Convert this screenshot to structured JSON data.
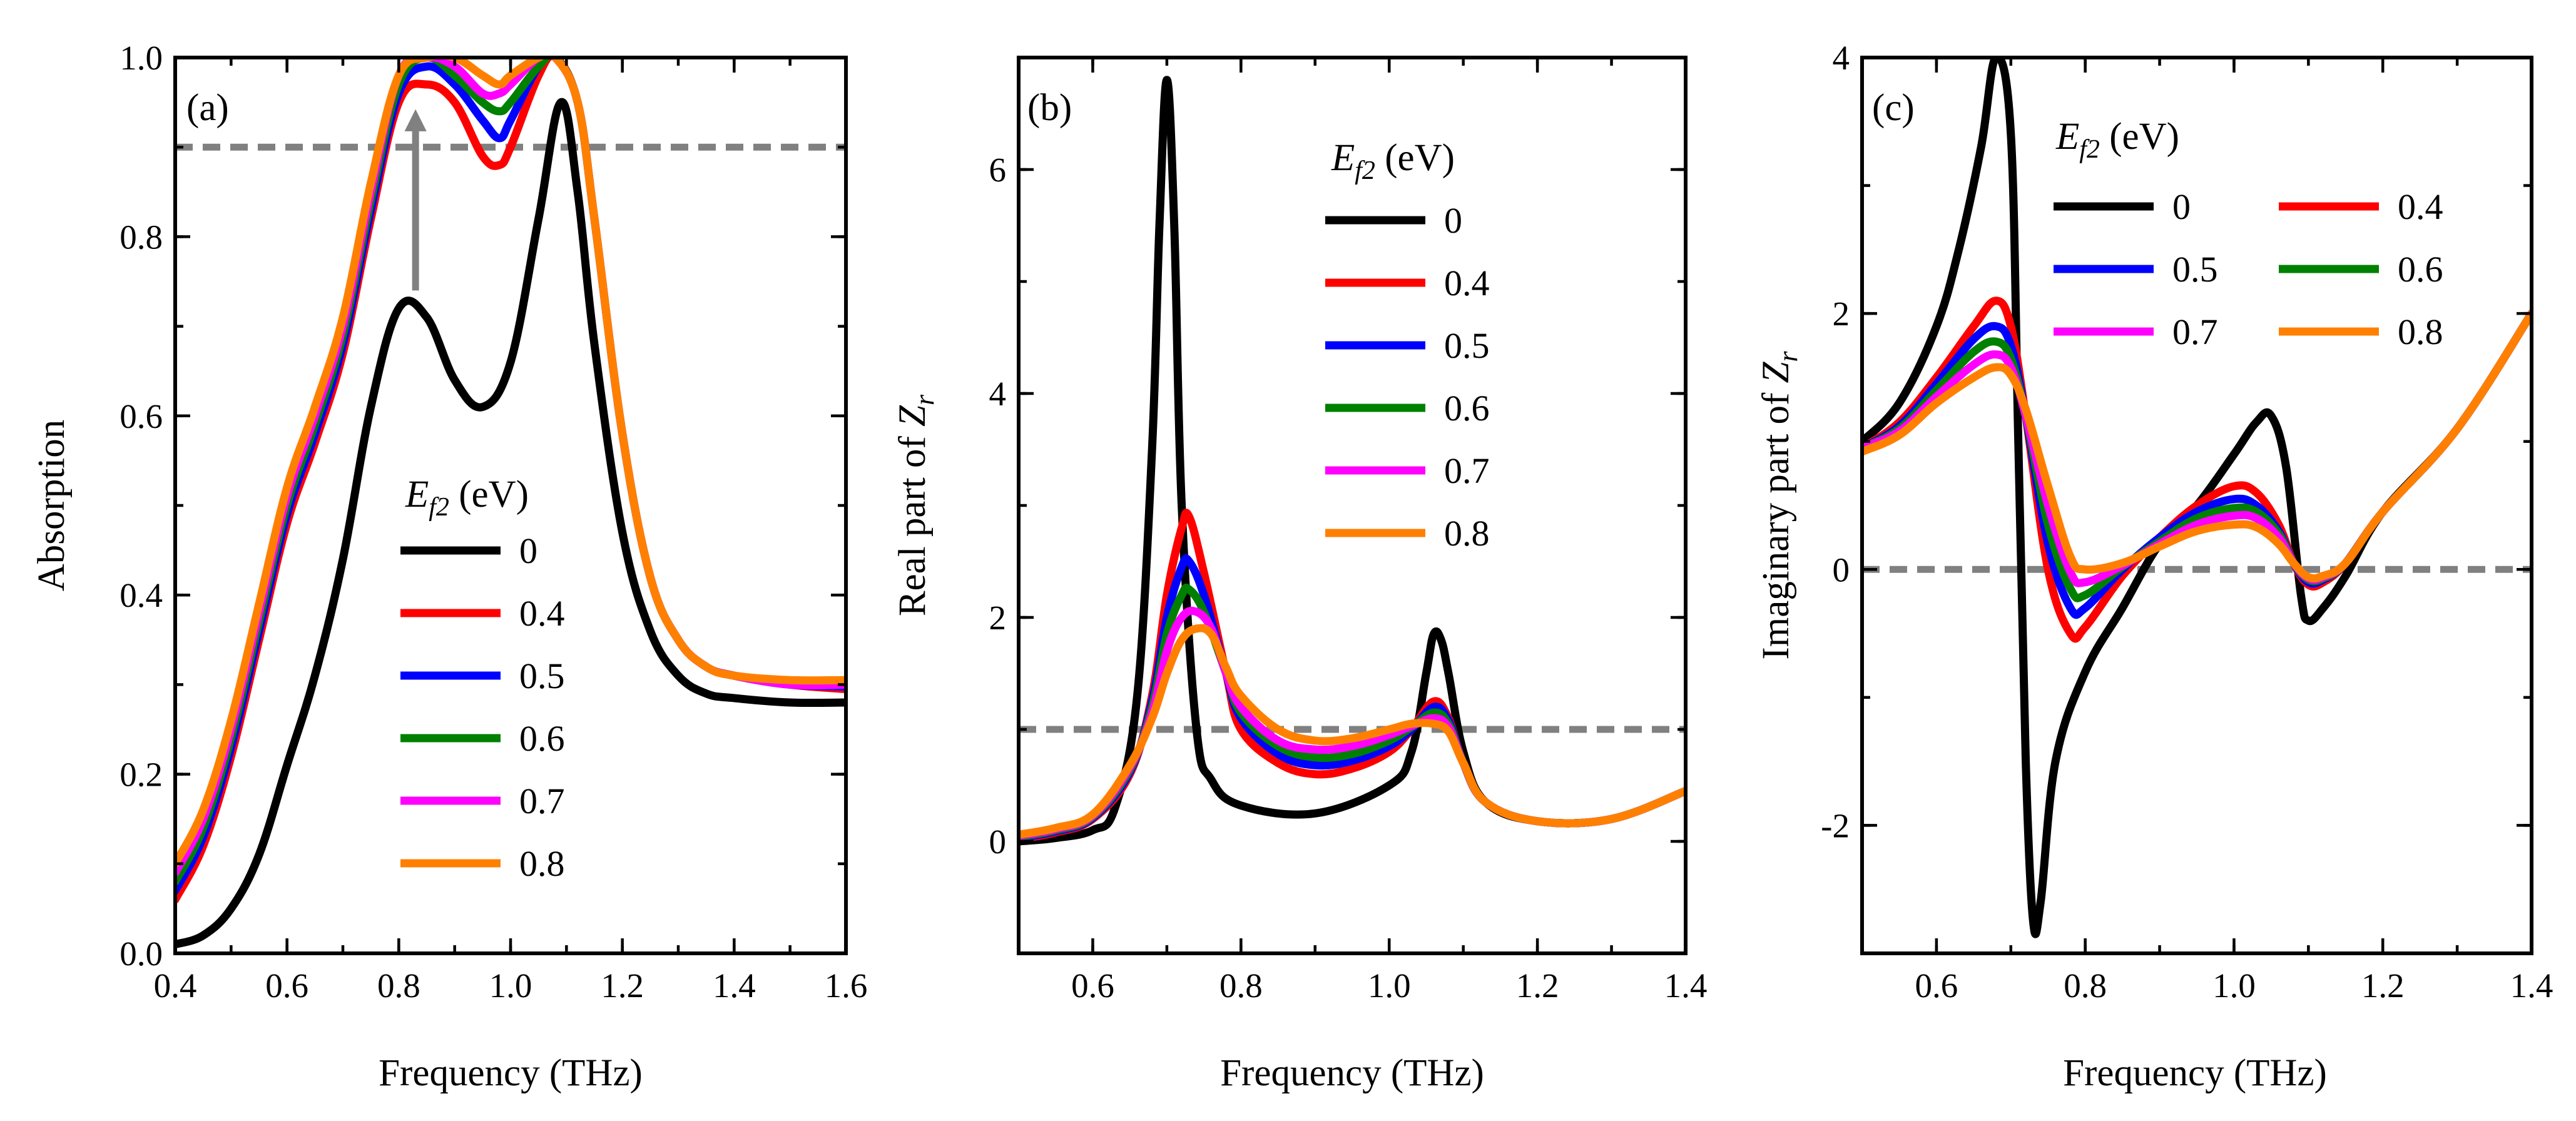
{
  "colors": {
    "0": "#000000",
    "0.4": "#ff0000",
    "0.5": "#0000ff",
    "0.6": "#008000",
    "0.7": "#ff00ff",
    "0.8": "#ff8000",
    "reference": "#808080",
    "arrow": "#808080"
  },
  "chart_data": [
    {
      "type": "line",
      "panel_label": "(a)",
      "xlabel": "Frequency (THz)",
      "ylabel": "Absorption",
      "xlim": [
        0.4,
        1.6
      ],
      "ylim": [
        0.0,
        1.0
      ],
      "xticks": [
        "0.4",
        "0.6",
        "0.8",
        "1.0",
        "1.2",
        "1.4",
        "1.6"
      ],
      "yticks": [
        "0.0",
        "0.2",
        "0.4",
        "0.6",
        "0.8",
        "1.0"
      ],
      "legend_title": {
        "symbol": "E",
        "subscript": "f2",
        "unit": " (eV)"
      },
      "legend_position": "lower-center",
      "reference_line": {
        "y": 0.9,
        "style": "dashed"
      },
      "annotation": {
        "type": "arrow",
        "direction": "up",
        "x": 0.83,
        "y_from": 0.74,
        "y_to": 0.93
      },
      "series": [
        {
          "name": "0",
          "x": [
            0.4,
            0.45,
            0.5,
            0.55,
            0.6,
            0.65,
            0.7,
            0.75,
            0.8,
            0.85,
            0.9,
            0.95,
            1.0,
            1.05,
            1.09,
            1.12,
            1.15,
            1.2,
            1.25,
            1.3,
            1.35,
            1.4,
            1.5,
            1.6
          ],
          "y": [
            0.01,
            0.02,
            0.05,
            0.11,
            0.21,
            0.31,
            0.44,
            0.61,
            0.72,
            0.71,
            0.64,
            0.61,
            0.66,
            0.82,
            0.95,
            0.85,
            0.68,
            0.47,
            0.36,
            0.31,
            0.29,
            0.285,
            0.28,
            0.28
          ]
        },
        {
          "name": "0.4",
          "x": [
            0.4,
            0.45,
            0.5,
            0.55,
            0.6,
            0.65,
            0.7,
            0.75,
            0.8,
            0.85,
            0.9,
            0.95,
            0.98,
            1.0,
            1.05,
            1.08,
            1.12,
            1.15,
            1.2,
            1.25,
            1.3,
            1.35,
            1.4,
            1.5,
            1.6
          ],
          "y": [
            0.06,
            0.12,
            0.22,
            0.35,
            0.48,
            0.57,
            0.67,
            0.82,
            0.95,
            0.97,
            0.95,
            0.89,
            0.88,
            0.9,
            0.98,
            1.0,
            0.95,
            0.82,
            0.58,
            0.42,
            0.35,
            0.32,
            0.31,
            0.3,
            0.295
          ]
        },
        {
          "name": "0.5",
          "x": [
            0.4,
            0.45,
            0.5,
            0.55,
            0.6,
            0.65,
            0.7,
            0.75,
            0.8,
            0.85,
            0.9,
            0.95,
            0.98,
            1.0,
            1.05,
            1.08,
            1.12,
            1.15,
            1.2,
            1.25,
            1.3,
            1.35,
            1.4,
            1.5,
            1.6
          ],
          "y": [
            0.07,
            0.13,
            0.23,
            0.36,
            0.49,
            0.58,
            0.68,
            0.83,
            0.96,
            0.99,
            0.97,
            0.93,
            0.91,
            0.93,
            0.99,
            1.0,
            0.95,
            0.82,
            0.58,
            0.42,
            0.35,
            0.32,
            0.31,
            0.3,
            0.298
          ]
        },
        {
          "name": "0.6",
          "x": [
            0.4,
            0.45,
            0.5,
            0.55,
            0.6,
            0.65,
            0.7,
            0.75,
            0.8,
            0.85,
            0.9,
            0.95,
            0.98,
            1.0,
            1.05,
            1.08,
            1.12,
            1.15,
            1.2,
            1.25,
            1.3,
            1.35,
            1.4,
            1.5,
            1.6
          ],
          "y": [
            0.08,
            0.14,
            0.24,
            0.37,
            0.5,
            0.59,
            0.69,
            0.84,
            0.97,
            1.0,
            0.98,
            0.95,
            0.94,
            0.95,
            0.99,
            1.0,
            0.95,
            0.82,
            0.58,
            0.42,
            0.35,
            0.32,
            0.31,
            0.3,
            0.3
          ]
        },
        {
          "name": "0.7",
          "x": [
            0.4,
            0.45,
            0.5,
            0.55,
            0.6,
            0.65,
            0.7,
            0.75,
            0.8,
            0.85,
            0.9,
            0.95,
            0.98,
            1.0,
            1.05,
            1.08,
            1.12,
            1.15,
            1.2,
            1.25,
            1.3,
            1.35,
            1.4,
            1.5,
            1.6
          ],
          "y": [
            0.09,
            0.15,
            0.25,
            0.38,
            0.51,
            0.6,
            0.7,
            0.85,
            0.98,
            1.0,
            0.99,
            0.96,
            0.96,
            0.97,
            1.0,
            1.0,
            0.95,
            0.82,
            0.58,
            0.42,
            0.35,
            0.32,
            0.31,
            0.3,
            0.3
          ]
        },
        {
          "name": "0.8",
          "x": [
            0.4,
            0.45,
            0.5,
            0.55,
            0.6,
            0.65,
            0.7,
            0.75,
            0.8,
            0.85,
            0.9,
            0.95,
            0.98,
            1.0,
            1.05,
            1.08,
            1.12,
            1.15,
            1.2,
            1.25,
            1.3,
            1.35,
            1.4,
            1.5,
            1.6
          ],
          "y": [
            0.1,
            0.16,
            0.26,
            0.39,
            0.52,
            0.61,
            0.71,
            0.86,
            0.98,
            1.0,
            1.0,
            0.98,
            0.97,
            0.98,
            1.0,
            1.0,
            0.95,
            0.82,
            0.58,
            0.42,
            0.35,
            0.32,
            0.31,
            0.305,
            0.305
          ]
        }
      ]
    },
    {
      "type": "line",
      "panel_label": "(b)",
      "xlabel": "Frequency (THz)",
      "ylabel": {
        "prefix": "Real part of ",
        "symbol": "Z",
        "subscript": "r"
      },
      "xlim": [
        0.5,
        1.4
      ],
      "ylim": [
        -1.0,
        7.0
      ],
      "xticks": [
        "0.6",
        "0.8",
        "1.0",
        "1.2",
        "1.4"
      ],
      "yticks": [
        "0",
        "2",
        "4",
        "6"
      ],
      "legend_title": {
        "symbol": "E",
        "subscript": "f2",
        "unit": " (eV)"
      },
      "legend_position": "upper-right",
      "reference_line": {
        "y": 1.0,
        "style": "dashed"
      },
      "series": [
        {
          "name": "0",
          "x": [
            0.5,
            0.55,
            0.6,
            0.63,
            0.66,
            0.68,
            0.69,
            0.7,
            0.71,
            0.72,
            0.74,
            0.76,
            0.8,
            0.9,
            1.0,
            1.03,
            1.05,
            1.06,
            1.07,
            1.08,
            1.1,
            1.13,
            1.2,
            1.3,
            1.4
          ],
          "y": [
            0.0,
            0.03,
            0.1,
            0.3,
            1.3,
            3.5,
            5.5,
            6.8,
            5.5,
            3.0,
            1.0,
            0.55,
            0.32,
            0.25,
            0.5,
            0.8,
            1.5,
            1.85,
            1.8,
            1.5,
            0.8,
            0.35,
            0.18,
            0.2,
            0.45
          ]
        },
        {
          "name": "0.4",
          "x": [
            0.5,
            0.55,
            0.6,
            0.65,
            0.68,
            0.7,
            0.72,
            0.73,
            0.75,
            0.78,
            0.8,
            0.85,
            0.9,
            0.95,
            1.0,
            1.03,
            1.06,
            1.08,
            1.1,
            1.13,
            1.2,
            1.3,
            1.4
          ],
          "y": [
            0.02,
            0.08,
            0.2,
            0.6,
            1.3,
            2.2,
            2.8,
            2.9,
            2.4,
            1.5,
            1.0,
            0.7,
            0.6,
            0.65,
            0.8,
            1.0,
            1.25,
            1.1,
            0.7,
            0.35,
            0.18,
            0.2,
            0.45
          ]
        },
        {
          "name": "0.5",
          "x": [
            0.5,
            0.55,
            0.6,
            0.65,
            0.68,
            0.7,
            0.72,
            0.73,
            0.75,
            0.78,
            0.8,
            0.85,
            0.9,
            0.95,
            1.0,
            1.03,
            1.06,
            1.08,
            1.1,
            1.13,
            1.2,
            1.3,
            1.4
          ],
          "y": [
            0.03,
            0.09,
            0.21,
            0.62,
            1.25,
            2.0,
            2.45,
            2.5,
            2.2,
            1.5,
            1.1,
            0.78,
            0.68,
            0.72,
            0.85,
            1.0,
            1.2,
            1.08,
            0.7,
            0.35,
            0.18,
            0.2,
            0.45
          ]
        },
        {
          "name": "0.6",
          "x": [
            0.5,
            0.55,
            0.6,
            0.65,
            0.68,
            0.7,
            0.72,
            0.73,
            0.75,
            0.78,
            0.8,
            0.85,
            0.9,
            0.95,
            1.0,
            1.03,
            1.06,
            1.08,
            1.1,
            1.13,
            1.2,
            1.3,
            1.4
          ],
          "y": [
            0.04,
            0.1,
            0.22,
            0.64,
            1.2,
            1.85,
            2.2,
            2.25,
            2.05,
            1.5,
            1.15,
            0.85,
            0.75,
            0.78,
            0.9,
            1.02,
            1.15,
            1.05,
            0.7,
            0.35,
            0.18,
            0.2,
            0.45
          ]
        },
        {
          "name": "0.7",
          "x": [
            0.5,
            0.55,
            0.6,
            0.65,
            0.68,
            0.7,
            0.72,
            0.74,
            0.76,
            0.78,
            0.8,
            0.85,
            0.9,
            0.95,
            1.0,
            1.03,
            1.06,
            1.08,
            1.1,
            1.13,
            1.2,
            1.3,
            1.4
          ],
          "y": [
            0.05,
            0.11,
            0.23,
            0.66,
            1.15,
            1.7,
            2.0,
            2.05,
            1.9,
            1.5,
            1.2,
            0.9,
            0.82,
            0.85,
            0.95,
            1.03,
            1.1,
            1.02,
            0.7,
            0.35,
            0.18,
            0.2,
            0.45
          ]
        },
        {
          "name": "0.8",
          "x": [
            0.5,
            0.55,
            0.6,
            0.65,
            0.68,
            0.7,
            0.72,
            0.74,
            0.76,
            0.78,
            0.8,
            0.85,
            0.9,
            0.95,
            1.0,
            1.03,
            1.06,
            1.08,
            1.1,
            1.13,
            1.2,
            1.3,
            1.4
          ],
          "y": [
            0.06,
            0.12,
            0.24,
            0.68,
            1.1,
            1.5,
            1.8,
            1.9,
            1.85,
            1.55,
            1.3,
            1.0,
            0.9,
            0.92,
            1.0,
            1.05,
            1.05,
            0.98,
            0.7,
            0.35,
            0.18,
            0.2,
            0.45
          ]
        }
      ]
    },
    {
      "type": "line",
      "panel_label": "(c)",
      "xlabel": "Frequency (THz)",
      "ylabel": {
        "prefix": "Imaginary part of ",
        "symbol": "Z",
        "subscript": "r"
      },
      "xlim": [
        0.5,
        1.4
      ],
      "ylim": [
        -3.0,
        4.0
      ],
      "xticks": [
        "0.6",
        "0.8",
        "1.0",
        "1.2",
        "1.4"
      ],
      "yticks": [
        "-2",
        "0",
        "2",
        "4"
      ],
      "legend_title": {
        "symbol": "E",
        "subscript": "f2",
        "unit": " (eV)"
      },
      "legend_position": "upper-right",
      "reference_line": {
        "y": 0.0,
        "style": "dashed"
      },
      "series": [
        {
          "name": "0",
          "x": [
            0.5,
            0.55,
            0.6,
            0.63,
            0.66,
            0.68,
            0.7,
            0.71,
            0.72,
            0.73,
            0.74,
            0.76,
            0.8,
            0.85,
            0.9,
            0.95,
            1.0,
            1.03,
            1.05,
            1.07,
            1.09,
            1.1,
            1.12,
            1.15,
            1.2,
            1.3,
            1.4
          ],
          "y": [
            1.0,
            1.3,
            1.9,
            2.5,
            3.3,
            4.0,
            3.4,
            1.0,
            -1.5,
            -2.75,
            -2.6,
            -1.5,
            -0.8,
            -0.3,
            0.2,
            0.5,
            0.9,
            1.15,
            1.2,
            0.8,
            -0.2,
            -0.4,
            -0.3,
            -0.05,
            0.45,
            1.1,
            2.0
          ]
        },
        {
          "name": "0.4",
          "x": [
            0.5,
            0.55,
            0.6,
            0.65,
            0.68,
            0.7,
            0.72,
            0.75,
            0.78,
            0.8,
            0.85,
            0.9,
            0.95,
            1.0,
            1.03,
            1.06,
            1.08,
            1.1,
            1.12,
            1.15,
            1.2,
            1.3,
            1.4
          ],
          "y": [
            0.95,
            1.15,
            1.5,
            1.9,
            2.1,
            1.9,
            1.2,
            0.0,
            -0.5,
            -0.45,
            -0.05,
            0.25,
            0.5,
            0.65,
            0.6,
            0.35,
            0.05,
            -0.12,
            -0.1,
            0.05,
            0.45,
            1.1,
            2.0
          ]
        },
        {
          "name": "0.5",
          "x": [
            0.5,
            0.55,
            0.6,
            0.65,
            0.68,
            0.7,
            0.72,
            0.75,
            0.78,
            0.8,
            0.85,
            0.9,
            0.95,
            1.0,
            1.03,
            1.06,
            1.08,
            1.1,
            1.12,
            1.15,
            1.2,
            1.3,
            1.4
          ],
          "y": [
            0.95,
            1.12,
            1.45,
            1.8,
            1.9,
            1.75,
            1.2,
            0.2,
            -0.3,
            -0.3,
            0.0,
            0.25,
            0.45,
            0.55,
            0.5,
            0.3,
            0.05,
            -0.1,
            -0.08,
            0.05,
            0.45,
            1.1,
            2.0
          ]
        },
        {
          "name": "0.6",
          "x": [
            0.5,
            0.55,
            0.6,
            0.65,
            0.68,
            0.7,
            0.72,
            0.75,
            0.78,
            0.8,
            0.85,
            0.9,
            0.95,
            1.0,
            1.03,
            1.06,
            1.08,
            1.1,
            1.12,
            1.15,
            1.2,
            1.3,
            1.4
          ],
          "y": [
            0.95,
            1.1,
            1.4,
            1.7,
            1.78,
            1.65,
            1.2,
            0.35,
            -0.15,
            -0.2,
            0.02,
            0.22,
            0.4,
            0.48,
            0.45,
            0.28,
            0.05,
            -0.08,
            -0.07,
            0.05,
            0.45,
            1.1,
            2.0
          ]
        },
        {
          "name": "0.7",
          "x": [
            0.5,
            0.55,
            0.6,
            0.65,
            0.68,
            0.7,
            0.72,
            0.75,
            0.78,
            0.8,
            0.85,
            0.9,
            0.95,
            1.0,
            1.03,
            1.06,
            1.08,
            1.1,
            1.12,
            1.15,
            1.2,
            1.3,
            1.4
          ],
          "y": [
            0.95,
            1.08,
            1.35,
            1.6,
            1.68,
            1.58,
            1.2,
            0.5,
            -0.02,
            -0.1,
            0.03,
            0.2,
            0.35,
            0.42,
            0.4,
            0.25,
            0.05,
            -0.07,
            -0.06,
            0.05,
            0.45,
            1.1,
            2.0
          ]
        },
        {
          "name": "0.8",
          "x": [
            0.5,
            0.55,
            0.6,
            0.65,
            0.68,
            0.7,
            0.72,
            0.75,
            0.78,
            0.8,
            0.85,
            0.9,
            0.95,
            1.0,
            1.03,
            1.06,
            1.08,
            1.1,
            1.12,
            1.15,
            1.2,
            1.3,
            1.4
          ],
          "y": [
            0.92,
            1.05,
            1.3,
            1.5,
            1.58,
            1.52,
            1.25,
            0.65,
            0.1,
            0.0,
            0.05,
            0.18,
            0.3,
            0.35,
            0.33,
            0.2,
            0.05,
            -0.06,
            -0.05,
            0.05,
            0.45,
            1.1,
            2.0
          ]
        }
      ]
    }
  ]
}
